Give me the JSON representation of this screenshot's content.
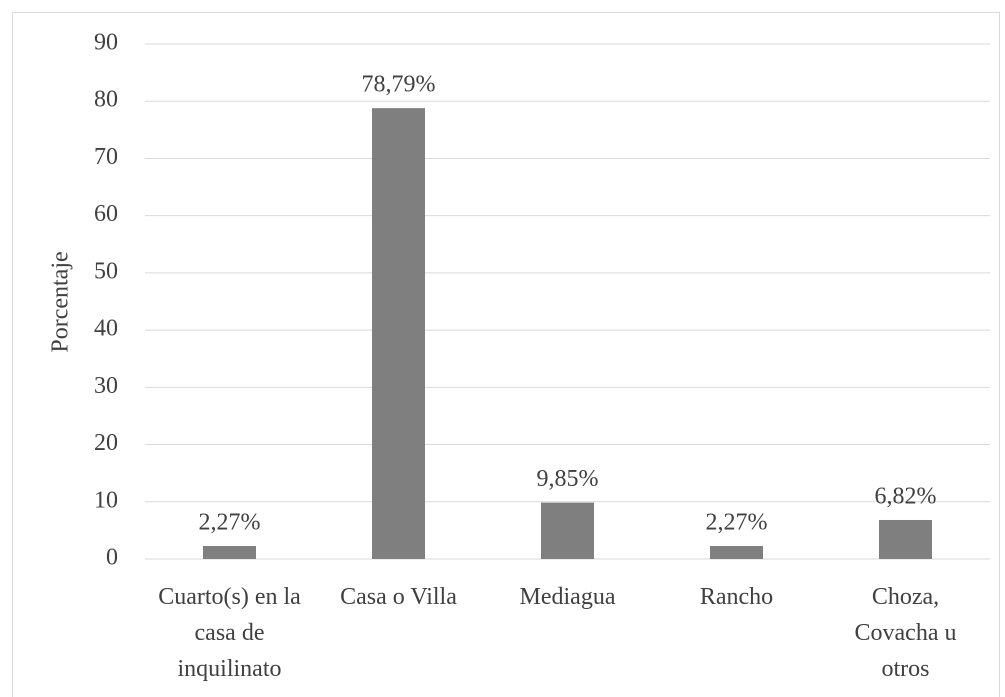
{
  "chart_data": {
    "type": "bar",
    "y_label": "Porcentaje",
    "categories": [
      "Cuarto(s) en la casa de inquilinato",
      "Casa o Villa",
      "Mediagua",
      "Rancho",
      "Choza, Covacha u otros"
    ],
    "values": [
      2.27,
      78.79,
      9.85,
      2.27,
      6.82
    ],
    "value_labels": [
      "2,27%",
      "78,79%",
      "9,85%",
      "2,27%",
      "6,82%"
    ],
    "color": "#7f7f7f",
    "ylim": [
      0,
      90
    ],
    "yticks": [
      0,
      10,
      20,
      30,
      40,
      50,
      60,
      70,
      80,
      90
    ],
    "grid": true
  }
}
